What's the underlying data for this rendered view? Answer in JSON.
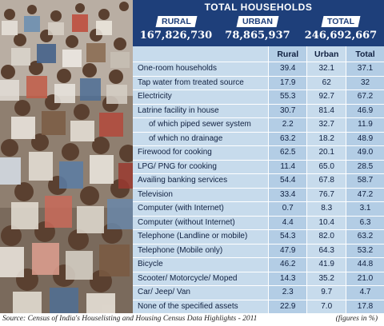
{
  "header": {
    "title": "TOTAL HOUSEHOLDS",
    "groups": [
      {
        "label": "RURAL",
        "value": "167,826,730"
      },
      {
        "label": "URBAN",
        "value": "78,865,937"
      },
      {
        "label": "TOTAL",
        "value": "246,692,667"
      }
    ]
  },
  "table": {
    "columns": [
      "Rural",
      "Urban",
      "Total"
    ],
    "rows": [
      {
        "label": "One-room households",
        "values": [
          "39.4",
          "32.1",
          "37.1"
        ]
      },
      {
        "label": "Tap water from treated source",
        "values": [
          "17.9",
          "62",
          "32"
        ]
      },
      {
        "label": "Electricity",
        "values": [
          "55.3",
          "92.7",
          "67.2"
        ]
      },
      {
        "label": "Latrine facility in house",
        "values": [
          "30.7",
          "81.4",
          "46.9"
        ]
      },
      {
        "label": "of which piped sewer system",
        "values": [
          "2.2",
          "32.7",
          "11.9"
        ],
        "indent": true
      },
      {
        "label": "of which no drainage",
        "values": [
          "63.2",
          "18.2",
          "48.9"
        ],
        "indent": true
      },
      {
        "label": "Firewood for cooking",
        "values": [
          "62.5",
          "20.1",
          "49.0"
        ]
      },
      {
        "label": "LPG/ PNG for cooking",
        "values": [
          "11.4",
          "65.0",
          "28.5"
        ]
      },
      {
        "label": "Availing banking services",
        "values": [
          "54.4",
          "67.8",
          "58.7"
        ]
      },
      {
        "label": "Television",
        "values": [
          "33.4",
          "76.7",
          "47.2"
        ]
      },
      {
        "label": "Computer (with Internet)",
        "values": [
          "0.7",
          "8.3",
          "3.1"
        ]
      },
      {
        "label": "Computer (without Internet)",
        "values": [
          "4.4",
          "10.4",
          "6.3"
        ]
      },
      {
        "label": "Telephone (Landline or mobile)",
        "values": [
          "54.3",
          "82.0",
          "63.2"
        ]
      },
      {
        "label": "Telephone (Mobile only)",
        "values": [
          "47.9",
          "64.3",
          "53.2"
        ]
      },
      {
        "label": "Bicycle",
        "values": [
          "46.2",
          "41.9",
          "44.8"
        ]
      },
      {
        "label": "Scooter/ Motorcycle/ Moped",
        "values": [
          "14.3",
          "35.2",
          "21.0"
        ]
      },
      {
        "label": "Car/ Jeep/ Van",
        "values": [
          "2.3",
          "9.7",
          "4.7"
        ]
      },
      {
        "label": "None of the specified assets",
        "values": [
          "22.9",
          "7.0",
          "17.8"
        ]
      }
    ]
  },
  "footer": {
    "source": "Source: Census of India's Houselisting and Housing Census Data Highlights - 2011",
    "note": "(figures in %)"
  },
  "colors": {
    "header_bg": "#1e3f7a",
    "panel_bg": "#c7dbec",
    "column_alt_bg": "#b3cde5",
    "text": "#102040"
  }
}
